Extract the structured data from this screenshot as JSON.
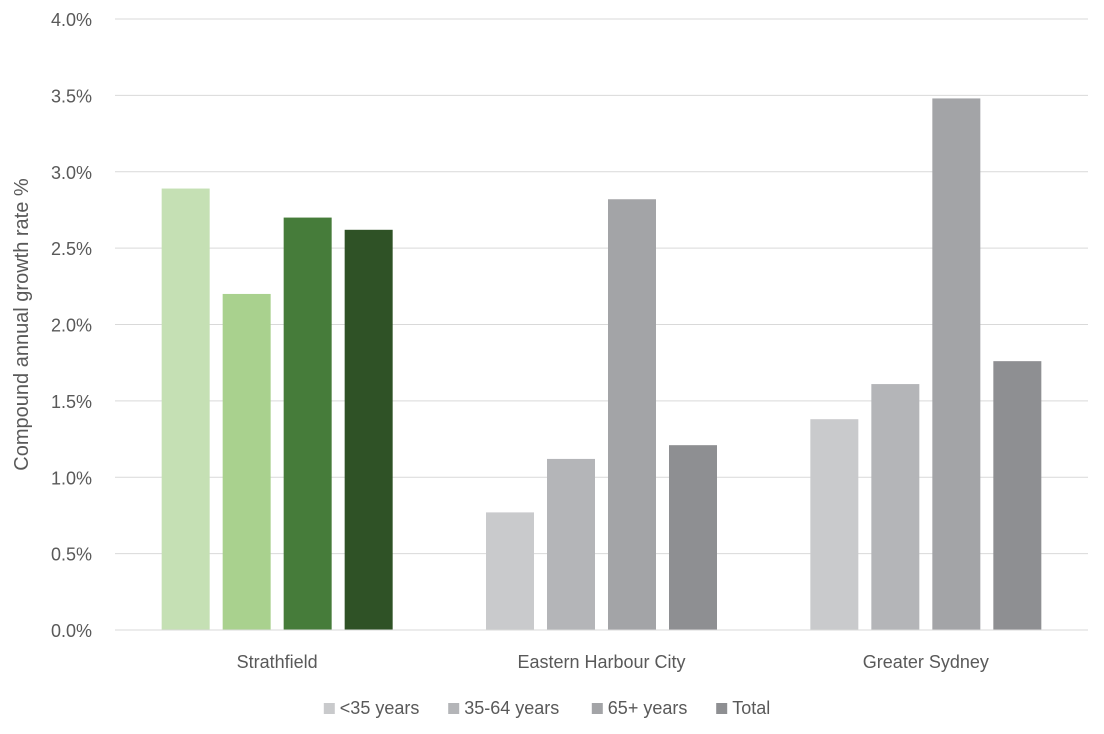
{
  "chart_data": {
    "type": "bar",
    "title": "",
    "xlabel": "",
    "ylabel": "Compound annual growth rate %",
    "ylim": [
      0,
      4.0
    ],
    "y_ticks": [
      "0.0%",
      "0.5%",
      "1.0%",
      "1.5%",
      "2.0%",
      "2.5%",
      "3.0%",
      "3.5%",
      "4.0%"
    ],
    "grid": true,
    "legend_position": "bottom",
    "categories": [
      "Strathfield",
      "Eastern Harbour City",
      "Greater Sydney"
    ],
    "series": [
      {
        "name": "<35 years",
        "values": [
          2.89,
          0.77,
          1.38
        ],
        "legend_color": "#c9cacc",
        "colors": [
          "#c5e0b4",
          "#c9cacc",
          "#c9cacc"
        ]
      },
      {
        "name": "35-64 years",
        "values": [
          2.2,
          1.12,
          1.61
        ],
        "legend_color": "#b4b5b8",
        "colors": [
          "#a9d18e",
          "#b4b5b8",
          "#b4b5b8"
        ]
      },
      {
        "name": "65+ years",
        "values": [
          2.7,
          2.82,
          3.48
        ],
        "legend_color": "#a3a4a7",
        "colors": [
          "#467c3a",
          "#a3a4a7",
          "#a3a4a7"
        ]
      },
      {
        "name": "Total",
        "values": [
          2.62,
          1.21,
          1.76
        ],
        "legend_color": "#8e8f92",
        "colors": [
          "#2f5226",
          "#8e8f92",
          "#8e8f92"
        ]
      }
    ]
  }
}
